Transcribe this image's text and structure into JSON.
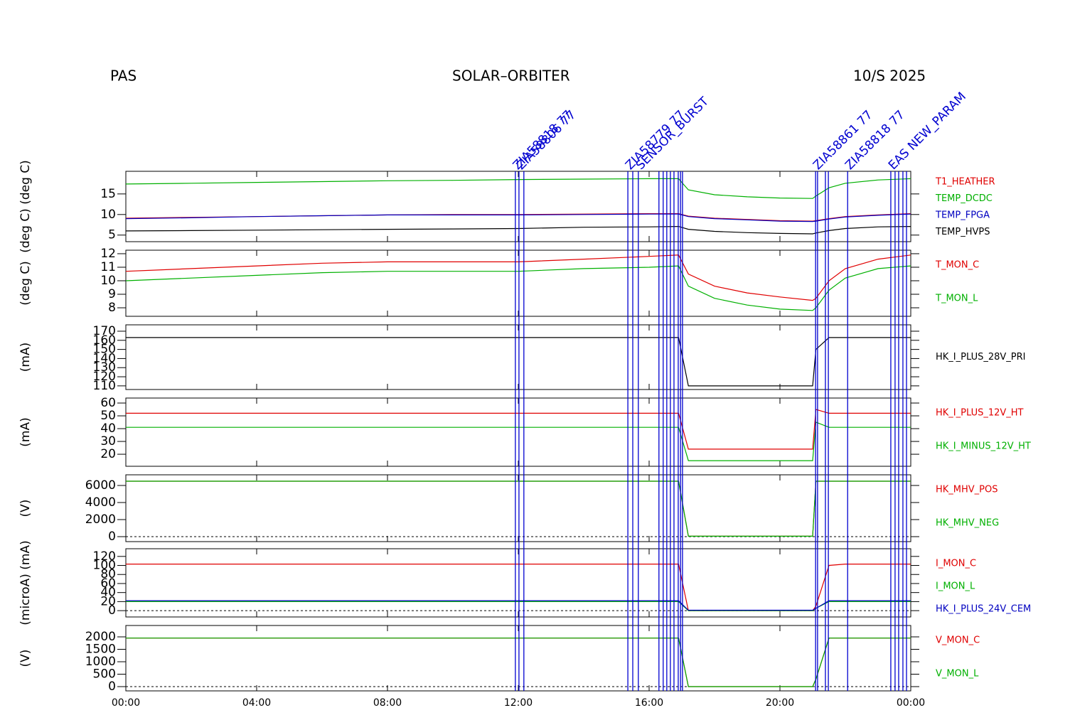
{
  "header": {
    "left": "PAS",
    "center": "SOLAR–ORBITER",
    "right": "10/S 2025"
  },
  "time_axis": {
    "xlim": [
      0,
      24
    ],
    "xticks": [
      {
        "value": 0,
        "label": "00:00"
      },
      {
        "value": 4,
        "label": "04:00"
      },
      {
        "value": 8,
        "label": "08:00"
      },
      {
        "value": 12,
        "label": "12:00"
      },
      {
        "value": 16,
        "label": "16:00"
      },
      {
        "value": 20,
        "label": "20:00"
      },
      {
        "value": 24,
        "label": "00:00"
      }
    ]
  },
  "events": [
    11.91,
    12.02,
    12.17,
    15.35,
    15.5,
    15.67,
    16.3,
    16.43,
    16.54,
    16.65,
    16.76,
    16.89,
    16.96,
    17.02,
    21.09,
    21.15,
    21.39,
    21.48,
    22.07,
    23.39,
    23.52,
    23.63,
    23.76,
    23.87
  ],
  "event_labels": [
    {
      "x": 11.91,
      "label": "ZIA58818 77"
    },
    {
      "x": 12.02,
      "label": "ZIA58806 77"
    },
    {
      "x": 15.35,
      "label": "ZIA58779 77"
    },
    {
      "x": 15.67,
      "label": "SENSOR_BURST"
    },
    {
      "x": 21.09,
      "label": "ZIA58861 77"
    },
    {
      "x": 22.07,
      "label": "ZIA58818 77"
    },
    {
      "x": 23.39,
      "label": "EAS NEW_PARAM"
    }
  ],
  "chart_data": [
    {
      "type": "line",
      "ylabel": "(deg C) (deg C)",
      "ylim": [
        3.4,
        20.5
      ],
      "yticks": [
        5,
        10,
        15
      ],
      "x": [
        0,
        2,
        4,
        6,
        8,
        10,
        12,
        14,
        16,
        16.9,
        17.2,
        18,
        19,
        20,
        21,
        21.1,
        21.5,
        22,
        23,
        24
      ],
      "series": [
        {
          "name": "T1_HEATHER",
          "color": "#e00000",
          "values": [
            9.1,
            9.3,
            9.5,
            9.7,
            9.9,
            10.0,
            10.0,
            10.1,
            10.2,
            10.2,
            9.6,
            9.1,
            8.8,
            8.5,
            8.4,
            8.5,
            9.0,
            9.5,
            9.9,
            10.2
          ]
        },
        {
          "name": "TEMP_DCDC",
          "color": "#00b000",
          "values": [
            17.4,
            17.6,
            17.8,
            18.0,
            18.2,
            18.3,
            18.5,
            18.6,
            18.7,
            18.7,
            16.0,
            14.8,
            14.3,
            14.0,
            13.9,
            14.5,
            16.5,
            17.6,
            18.4,
            18.7
          ]
        },
        {
          "name": "TEMP_FPGA",
          "color": "#0000c0",
          "values": [
            9.0,
            9.2,
            9.5,
            9.7,
            9.9,
            9.9,
            9.9,
            10.0,
            10.1,
            10.1,
            9.5,
            9.0,
            8.7,
            8.4,
            8.3,
            8.4,
            8.9,
            9.4,
            9.8,
            10.1
          ]
        },
        {
          "name": "TEMP_HVPS",
          "color": "#000000",
          "values": [
            6.0,
            6.1,
            6.2,
            6.3,
            6.4,
            6.5,
            6.6,
            6.9,
            7.0,
            7.1,
            6.4,
            5.9,
            5.6,
            5.4,
            5.3,
            5.5,
            6.1,
            6.6,
            7.0,
            7.1
          ]
        }
      ]
    },
    {
      "type": "line",
      "ylabel": "(deg C)",
      "ylim": [
        7.37,
        12.26
      ],
      "yticks": [
        8,
        9,
        10,
        11,
        12
      ],
      "x": [
        0,
        2,
        4,
        6,
        8,
        10,
        12,
        14,
        16,
        16.9,
        17.2,
        18,
        19,
        20,
        21,
        21.1,
        21.5,
        22,
        23,
        24
      ],
      "series": [
        {
          "name": "T_MON_C",
          "color": "#e00000",
          "values": [
            10.7,
            10.9,
            11.1,
            11.3,
            11.4,
            11.4,
            11.4,
            11.6,
            11.8,
            11.9,
            10.5,
            9.6,
            9.1,
            8.8,
            8.55,
            8.7,
            10.0,
            10.9,
            11.6,
            11.9
          ]
        },
        {
          "name": "T_MON_L",
          "color": "#00b000",
          "values": [
            10.0,
            10.2,
            10.4,
            10.6,
            10.7,
            10.7,
            10.7,
            10.9,
            11.0,
            11.1,
            9.6,
            8.7,
            8.2,
            7.9,
            7.8,
            8.0,
            9.3,
            10.2,
            10.9,
            11.1
          ]
        }
      ]
    },
    {
      "type": "line",
      "ylabel": "(mA)",
      "ylim": [
        106,
        177
      ],
      "yticks": [
        110,
        120,
        130,
        140,
        150,
        160,
        170
      ],
      "x": [
        0,
        2,
        4,
        6,
        8,
        10,
        12,
        14,
        16,
        16.9,
        17.2,
        18,
        19,
        20,
        21,
        21.1,
        21.5,
        22,
        23,
        24
      ],
      "series": [
        {
          "name": "HK_I_PLUS_28V_PRI",
          "color": "#000000",
          "values": [
            163,
            163,
            163,
            163,
            163,
            163,
            163,
            163,
            163,
            163,
            110,
            110,
            110,
            110,
            110,
            150,
            163,
            163,
            163,
            163
          ]
        }
      ]
    },
    {
      "type": "line",
      "ylabel": "(mA)",
      "ylim": [
        10.6,
        63.9
      ],
      "yticks": [
        20,
        30,
        40,
        50,
        60
      ],
      "x": [
        0,
        2,
        4,
        6,
        8,
        10,
        12,
        14,
        16,
        16.9,
        17.2,
        18,
        19,
        20,
        21,
        21.1,
        21.5,
        22,
        23,
        24
      ],
      "series": [
        {
          "name": "HK_I_PLUS_12V_HT",
          "color": "#e00000",
          "values": [
            52,
            52,
            52,
            52,
            52,
            52,
            52,
            52,
            52,
            52,
            24,
            24,
            24,
            24,
            24,
            55,
            52,
            52,
            52,
            52
          ]
        },
        {
          "name": "HK_I_MINUS_12V_HT",
          "color": "#00b000",
          "values": [
            41,
            41,
            41,
            41,
            41,
            41,
            41,
            41,
            41,
            41,
            15,
            15,
            15,
            15,
            15,
            45,
            41,
            41,
            41,
            41
          ]
        }
      ]
    },
    {
      "type": "line",
      "ylabel": "(V)",
      "ylim": [
        -583,
        7250
      ],
      "yticks": [
        0,
        2000,
        4000,
        6000
      ],
      "zero_line": true,
      "x": [
        0,
        2,
        4,
        6,
        8,
        10,
        12,
        14,
        16,
        16.9,
        17.2,
        18,
        19,
        20,
        21,
        21.1,
        21.5,
        22,
        23,
        24
      ],
      "series": [
        {
          "name": "HK_MHV_POS",
          "color": "#e00000",
          "values": [
            6500,
            6500,
            6500,
            6500,
            6500,
            6500,
            6500,
            6500,
            6500,
            6500,
            50,
            50,
            50,
            50,
            50,
            6500,
            6500,
            6500,
            6500,
            6500
          ]
        },
        {
          "name": "HK_MHV_NEG",
          "color": "#00b000",
          "values": [
            6500,
            6500,
            6500,
            6500,
            6500,
            6500,
            6500,
            6500,
            6500,
            6500,
            50,
            50,
            50,
            50,
            50,
            6500,
            6500,
            6500,
            6500,
            6500
          ]
        }
      ]
    },
    {
      "type": "line",
      "ylabel": "(microA) (mA)",
      "ylim": [
        -14,
        137
      ],
      "yticks": [
        0,
        20,
        40,
        60,
        80,
        100,
        120
      ],
      "zero_line": true,
      "x": [
        0,
        2,
        4,
        6,
        8,
        10,
        12,
        14,
        16,
        16.9,
        17.2,
        18,
        19,
        20,
        21,
        21.1,
        21.5,
        22,
        23,
        24
      ],
      "series": [
        {
          "name": "I_MON_C",
          "color": "#e00000",
          "values": [
            103,
            103,
            103,
            103,
            103,
            103,
            103,
            103,
            103,
            103,
            0,
            0,
            0,
            0,
            0,
            10,
            100,
            103,
            103,
            103
          ]
        },
        {
          "name": "I_MON_L",
          "color": "#00b000",
          "values": [
            20,
            20,
            20,
            20,
            20,
            20,
            20,
            20,
            20,
            20,
            0,
            0,
            0,
            0,
            0,
            5,
            20,
            20,
            20,
            20
          ]
        },
        {
          "name": "HK_I_PLUS_24V_CEM",
          "color": "#0000c0",
          "values": [
            22,
            22,
            22,
            22,
            22,
            22,
            22,
            22,
            22,
            22,
            1,
            1,
            1,
            1,
            1,
            5,
            22,
            22,
            22,
            22
          ]
        }
      ]
    },
    {
      "type": "line",
      "ylabel": "(V)",
      "ylim": [
        -171,
        2457
      ],
      "yticks": [
        0,
        500,
        1000,
        1500,
        2000
      ],
      "zero_line": true,
      "x": [
        0,
        2,
        4,
        6,
        8,
        10,
        12,
        14,
        16,
        16.9,
        17.2,
        18,
        19,
        20,
        21,
        21.1,
        21.5,
        22,
        23,
        24
      ],
      "series": [
        {
          "name": "V_MON_C",
          "color": "#e00000",
          "values": [
            1950,
            1950,
            1950,
            1950,
            1950,
            1950,
            1950,
            1950,
            1950,
            1950,
            0,
            0,
            0,
            0,
            0,
            300,
            1950,
            1950,
            1950,
            1950
          ]
        },
        {
          "name": "V_MON_L",
          "color": "#00b000",
          "values": [
            1950,
            1950,
            1950,
            1950,
            1950,
            1950,
            1950,
            1950,
            1950,
            1950,
            0,
            0,
            0,
            0,
            0,
            300,
            1950,
            1950,
            1950,
            1950
          ]
        }
      ]
    }
  ]
}
